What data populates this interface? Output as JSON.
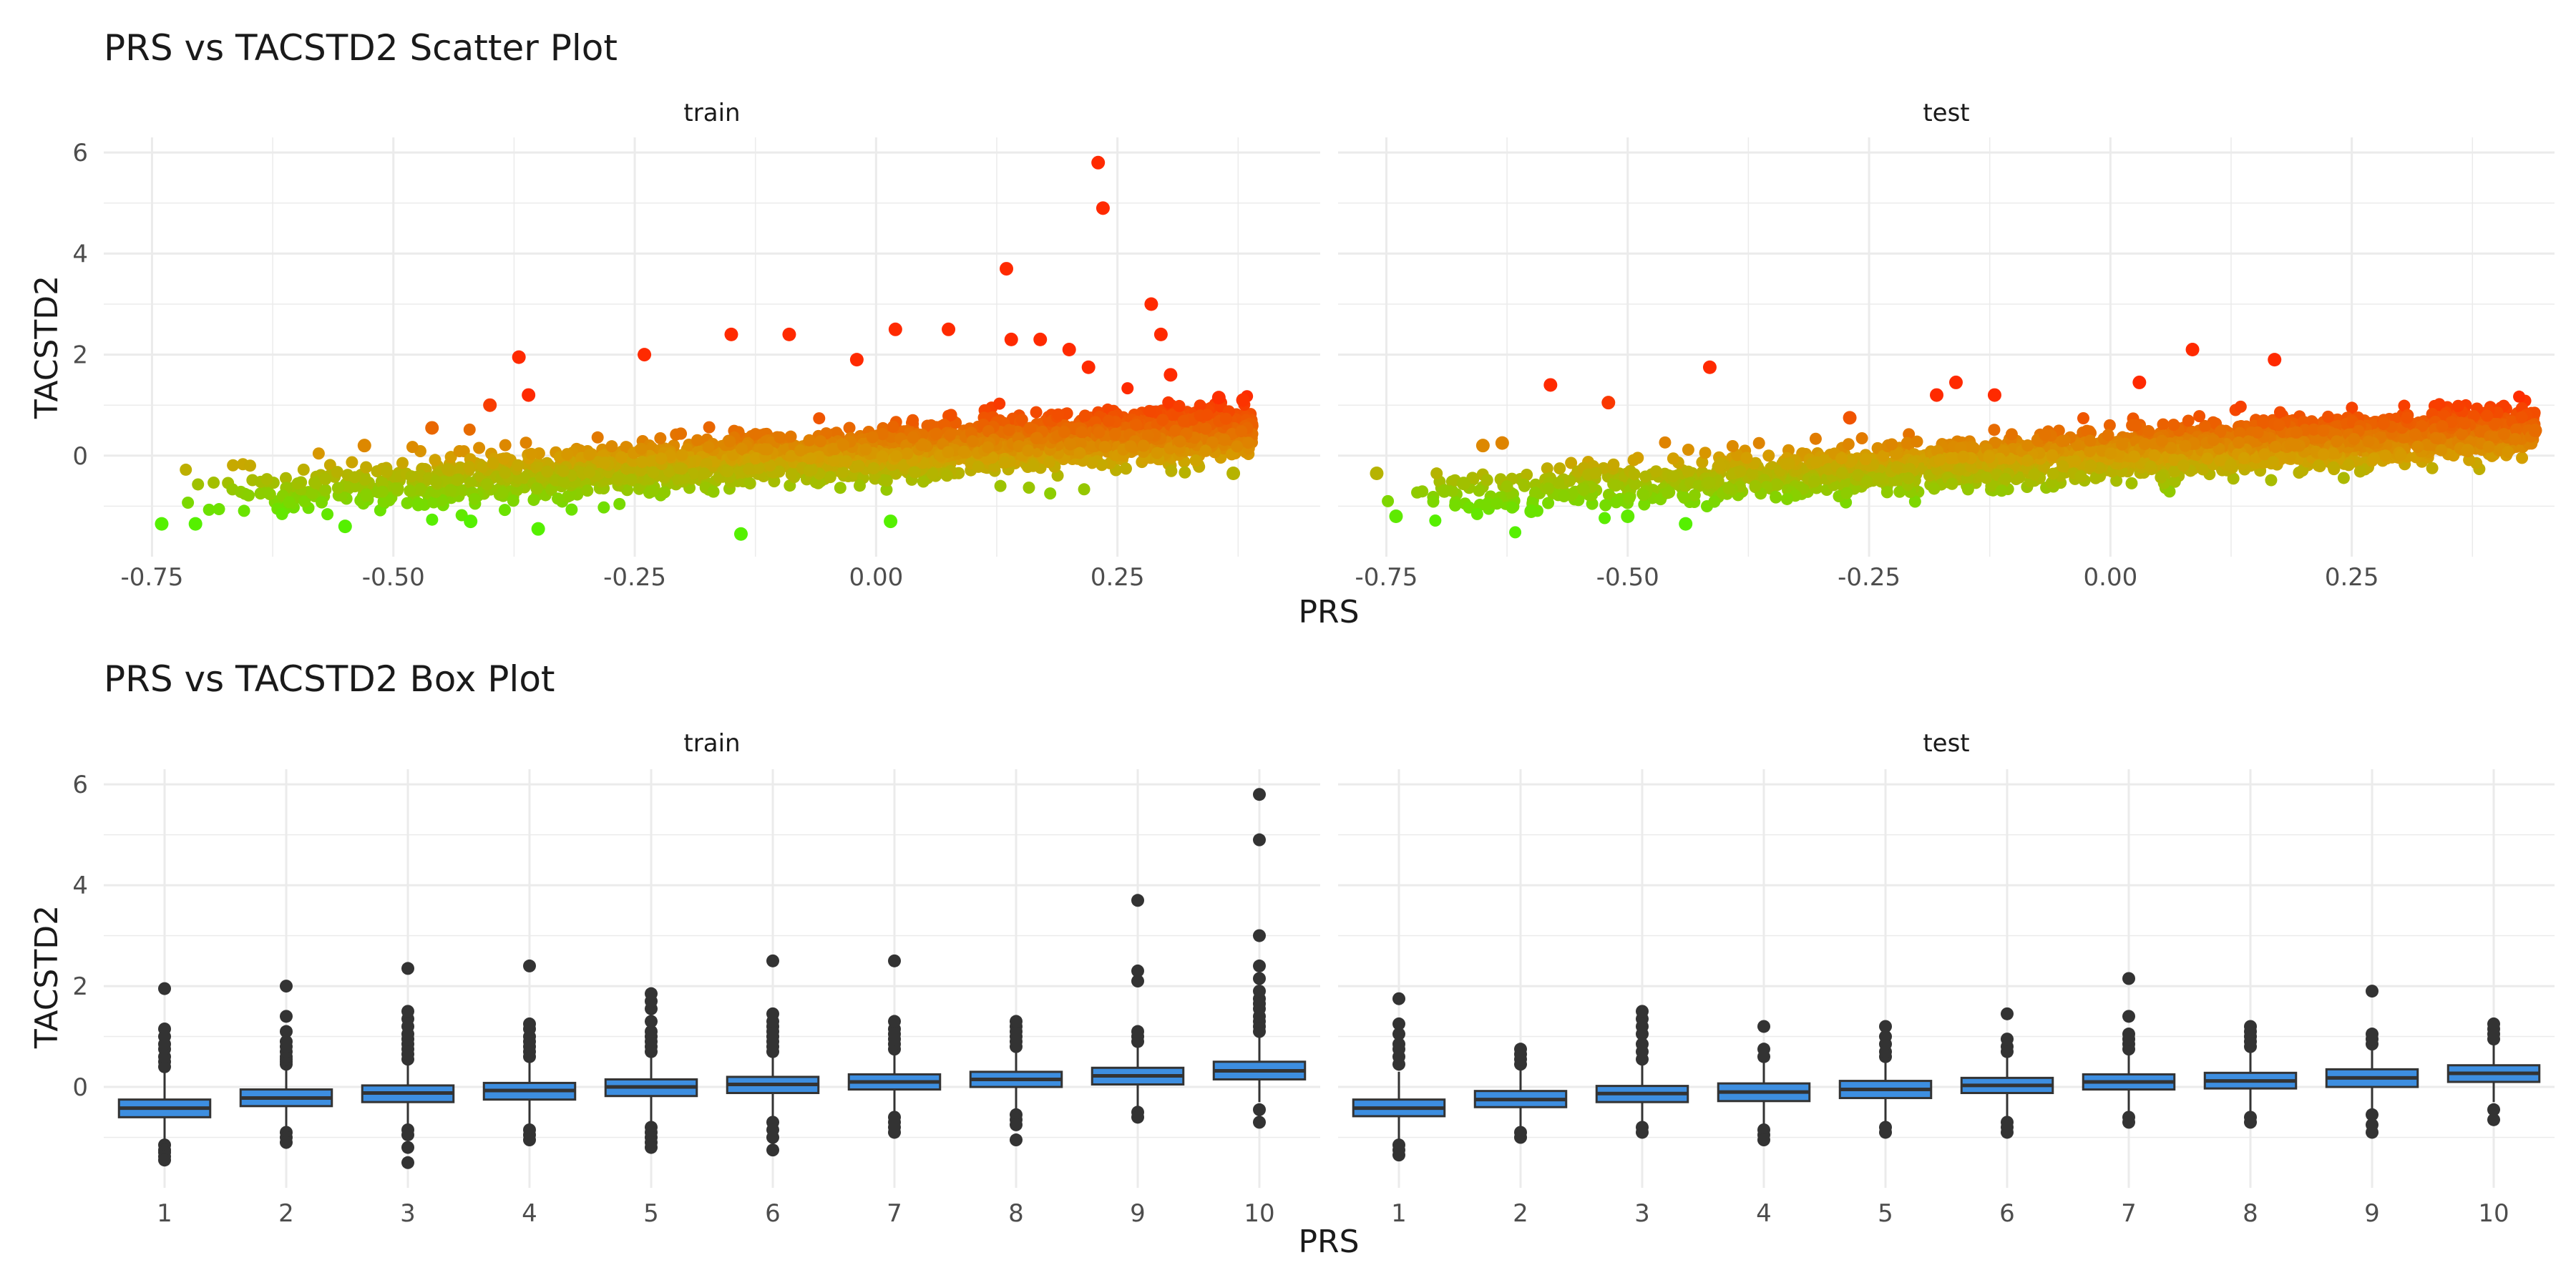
{
  "chart_data": [
    {
      "type": "scatter",
      "title": "PRS vs TACSTD2 Scatter Plot",
      "xlabel": "PRS",
      "ylabel": "TACSTD2",
      "panels": [
        "train",
        "test"
      ],
      "xlim": [
        -0.8,
        0.46
      ],
      "ylim": [
        -2.0,
        6.3
      ],
      "x_ticks": [
        -0.75,
        -0.5,
        -0.25,
        0.0,
        0.25
      ],
      "x_tick_labels": [
        "-0.75",
        "-0.50",
        "-0.25",
        "0.00",
        "0.25"
      ],
      "y_ticks": [
        0,
        2,
        4,
        6
      ],
      "y_tick_labels": [
        "0",
        "2",
        "4",
        "6"
      ],
      "color_scale": {
        "low": "#55f000",
        "mid": "#d4a000",
        "high": "#ff2a00"
      },
      "grid": true,
      "trend": {
        "train": {
          "x_range": [
            -0.74,
            0.39
          ],
          "y_at_min": -0.85,
          "y_at_max": 0.55,
          "spread": 0.45
        },
        "test": {
          "x_range": [
            -0.76,
            0.44
          ],
          "y_at_min": -0.85,
          "y_at_max": 0.55,
          "spread": 0.42
        }
      },
      "series": [
        {
          "name": "train",
          "outliers": [
            {
              "x": 0.23,
              "y": 5.8
            },
            {
              "x": 0.235,
              "y": 4.9
            },
            {
              "x": 0.135,
              "y": 3.7
            },
            {
              "x": 0.285,
              "y": 3.0
            },
            {
              "x": 0.02,
              "y": 2.5
            },
            {
              "x": 0.075,
              "y": 2.5
            },
            {
              "x": -0.09,
              "y": 2.4
            },
            {
              "x": -0.15,
              "y": 2.4
            },
            {
              "x": -0.37,
              "y": 1.95
            },
            {
              "x": -0.24,
              "y": 2.0
            },
            {
              "x": 0.14,
              "y": 2.3
            },
            {
              "x": 0.17,
              "y": 2.3
            },
            {
              "x": 0.2,
              "y": 2.1
            },
            {
              "x": 0.295,
              "y": 2.4
            },
            {
              "x": -0.4,
              "y": 1.0
            },
            {
              "x": -0.36,
              "y": 1.2
            },
            {
              "x": -0.02,
              "y": 1.9
            },
            {
              "x": 0.22,
              "y": 1.75
            },
            {
              "x": 0.305,
              "y": 1.6
            },
            {
              "x": -0.46,
              "y": 0.55
            },
            {
              "x": -0.53,
              "y": 0.2
            },
            {
              "x": -0.74,
              "y": -1.35
            },
            {
              "x": -0.705,
              "y": -1.35
            },
            {
              "x": -0.55,
              "y": -1.4
            },
            {
              "x": -0.35,
              "y": -1.45
            },
            {
              "x": -0.14,
              "y": -1.55
            },
            {
              "x": 0.015,
              "y": -1.3
            },
            {
              "x": -0.42,
              "y": -1.3
            },
            {
              "x": 0.37,
              "y": -0.35
            },
            {
              "x": 0.38,
              "y": 1.1
            },
            {
              "x": 0.355,
              "y": 1.15
            }
          ]
        },
        {
          "name": "test",
          "outliers": [
            {
              "x": 0.085,
              "y": 2.1
            },
            {
              "x": 0.17,
              "y": 1.9
            },
            {
              "x": -0.415,
              "y": 1.75
            },
            {
              "x": -0.58,
              "y": 1.4
            },
            {
              "x": -0.52,
              "y": 1.05
            },
            {
              "x": -0.16,
              "y": 1.45
            },
            {
              "x": 0.03,
              "y": 1.45
            },
            {
              "x": 0.44,
              "y": 0.5
            },
            {
              "x": 0.37,
              "y": 0.1
            },
            {
              "x": -0.69,
              "y": -0.7
            },
            {
              "x": -0.67,
              "y": -0.55
            },
            {
              "x": -0.65,
              "y": 0.2
            },
            {
              "x": -0.63,
              "y": 0.25
            },
            {
              "x": -0.6,
              "y": -1.1
            },
            {
              "x": -0.74,
              "y": -1.2
            },
            {
              "x": -0.76,
              "y": -0.35
            },
            {
              "x": -0.5,
              "y": -1.2
            },
            {
              "x": -0.44,
              "y": -1.35
            },
            {
              "x": -0.18,
              "y": 1.2
            },
            {
              "x": -0.12,
              "y": 1.2
            },
            {
              "x": -0.27,
              "y": 0.75
            }
          ]
        }
      ]
    },
    {
      "type": "box",
      "title": "PRS vs TACSTD2 Box Plot",
      "xlabel": "PRS",
      "ylabel": "TACSTD2",
      "panels": [
        "train",
        "test"
      ],
      "categories": [
        "1",
        "2",
        "3",
        "4",
        "5",
        "6",
        "7",
        "8",
        "9",
        "10"
      ],
      "ylim": [
        -2.0,
        6.3
      ],
      "y_ticks": [
        0,
        2,
        4,
        6
      ],
      "y_tick_labels": [
        "0",
        "2",
        "4",
        "6"
      ],
      "box_fill": "#3d8ee0",
      "box_stroke": "#333333",
      "grid": true,
      "series": [
        {
          "name": "train",
          "boxes": [
            {
              "q1": -0.6,
              "median": -0.42,
              "q3": -0.25,
              "lower": -1.1,
              "upper": 0.3,
              "outliers": [
                -1.15,
                -1.25,
                -1.3,
                -1.38,
                -1.45,
                0.4,
                0.5,
                0.6,
                0.75,
                0.85,
                1.0,
                1.15,
                1.95
              ]
            },
            {
              "q1": -0.38,
              "median": -0.22,
              "q3": -0.05,
              "lower": -0.85,
              "upper": 0.4,
              "outliers": [
                -0.9,
                -1.0,
                -1.1,
                0.45,
                0.5,
                0.55,
                0.6,
                0.7,
                0.8,
                0.9,
                1.1,
                1.4,
                2.0
              ]
            },
            {
              "q1": -0.3,
              "median": -0.12,
              "q3": 0.03,
              "lower": -0.8,
              "upper": 0.5,
              "outliers": [
                -0.85,
                -0.95,
                -1.2,
                -1.5,
                0.55,
                0.65,
                0.75,
                0.85,
                0.95,
                1.05,
                1.2,
                1.35,
                1.5,
                2.35
              ]
            },
            {
              "q1": -0.25,
              "median": -0.07,
              "q3": 0.08,
              "lower": -0.75,
              "upper": 0.55,
              "outliers": [
                -0.85,
                -0.95,
                -1.05,
                0.6,
                0.7,
                0.8,
                0.9,
                1.0,
                1.15,
                1.25,
                2.4
              ]
            },
            {
              "q1": -0.18,
              "median": 0.0,
              "q3": 0.15,
              "lower": -0.7,
              "upper": 0.6,
              "outliers": [
                -0.8,
                -0.9,
                -1.0,
                -1.1,
                -1.2,
                0.7,
                0.8,
                0.9,
                1.0,
                1.1,
                1.3,
                1.55,
                1.7,
                1.85
              ]
            },
            {
              "q1": -0.12,
              "median": 0.05,
              "q3": 0.2,
              "lower": -0.6,
              "upper": 0.65,
              "outliers": [
                -0.7,
                -0.85,
                -1.0,
                -1.25,
                0.7,
                0.8,
                0.9,
                1.0,
                1.1,
                1.2,
                1.3,
                1.45,
                2.5
              ]
            },
            {
              "q1": -0.05,
              "median": 0.1,
              "q3": 0.25,
              "lower": -0.5,
              "upper": 0.7,
              "outliers": [
                -0.6,
                -0.7,
                -0.8,
                -0.9,
                0.75,
                0.85,
                0.95,
                1.05,
                1.15,
                1.3,
                2.5
              ]
            },
            {
              "q1": 0.0,
              "median": 0.15,
              "q3": 0.3,
              "lower": -0.45,
              "upper": 0.75,
              "outliers": [
                -0.55,
                -0.65,
                -0.75,
                -1.05,
                0.8,
                0.9,
                1.0,
                1.1,
                1.2,
                1.3
              ]
            },
            {
              "q1": 0.05,
              "median": 0.22,
              "q3": 0.38,
              "lower": -0.4,
              "upper": 0.85,
              "outliers": [
                -0.5,
                -0.6,
                0.9,
                1.0,
                1.1,
                2.1,
                2.3,
                3.7
              ]
            },
            {
              "q1": 0.15,
              "median": 0.32,
              "q3": 0.5,
              "lower": -0.3,
              "upper": 1.0,
              "outliers": [
                -0.45,
                -0.7,
                1.1,
                1.2,
                1.3,
                1.4,
                1.55,
                1.65,
                1.75,
                1.9,
                2.15,
                2.4,
                3.0,
                4.9,
                5.8
              ]
            }
          ]
        },
        {
          "name": "test",
          "boxes": [
            {
              "q1": -0.58,
              "median": -0.42,
              "q3": -0.25,
              "lower": -1.05,
              "upper": 0.3,
              "outliers": [
                -1.15,
                -1.25,
                -1.35,
                0.45,
                0.6,
                0.75,
                0.85,
                1.05,
                1.25,
                1.75
              ]
            },
            {
              "q1": -0.4,
              "median": -0.25,
              "q3": -0.08,
              "lower": -0.85,
              "upper": 0.35,
              "outliers": [
                -0.9,
                -1.0,
                0.45,
                0.55,
                0.65,
                0.75
              ]
            },
            {
              "q1": -0.3,
              "median": -0.13,
              "q3": 0.02,
              "lower": -0.75,
              "upper": 0.5,
              "outliers": [
                -0.8,
                -0.9,
                0.55,
                0.7,
                0.85,
                1.05,
                1.2,
                1.35,
                1.5
              ]
            },
            {
              "q1": -0.28,
              "median": -0.1,
              "q3": 0.07,
              "lower": -0.75,
              "upper": 0.5,
              "outliers": [
                -0.85,
                -0.95,
                -1.05,
                0.6,
                0.75,
                1.2
              ]
            },
            {
              "q1": -0.22,
              "median": -0.05,
              "q3": 0.12,
              "lower": -0.7,
              "upper": 0.55,
              "outliers": [
                -0.8,
                -0.9,
                0.6,
                0.7,
                0.85,
                1.0,
                1.2
              ]
            },
            {
              "q1": -0.12,
              "median": 0.03,
              "q3": 0.18,
              "lower": -0.6,
              "upper": 0.6,
              "outliers": [
                -0.7,
                -0.8,
                -0.9,
                0.7,
                0.8,
                0.95,
                1.45
              ]
            },
            {
              "q1": -0.05,
              "median": 0.1,
              "q3": 0.25,
              "lower": -0.5,
              "upper": 0.7,
              "outliers": [
                -0.6,
                -0.7,
                0.75,
                0.85,
                0.95,
                1.05,
                1.4,
                2.15
              ]
            },
            {
              "q1": -0.03,
              "median": 0.12,
              "q3": 0.28,
              "lower": -0.5,
              "upper": 0.75,
              "outliers": [
                -0.6,
                -0.7,
                0.8,
                0.9,
                1.0,
                1.1,
                1.2
              ]
            },
            {
              "q1": 0.0,
              "median": 0.18,
              "q3": 0.35,
              "lower": -0.45,
              "upper": 0.8,
              "outliers": [
                -0.55,
                -0.75,
                -0.9,
                0.85,
                0.95,
                1.05,
                1.9
              ]
            },
            {
              "q1": 0.1,
              "median": 0.27,
              "q3": 0.43,
              "lower": -0.3,
              "upper": 0.85,
              "outliers": [
                -0.45,
                -0.65,
                0.95,
                1.05,
                1.15,
                1.25
              ]
            }
          ]
        }
      ]
    }
  ]
}
